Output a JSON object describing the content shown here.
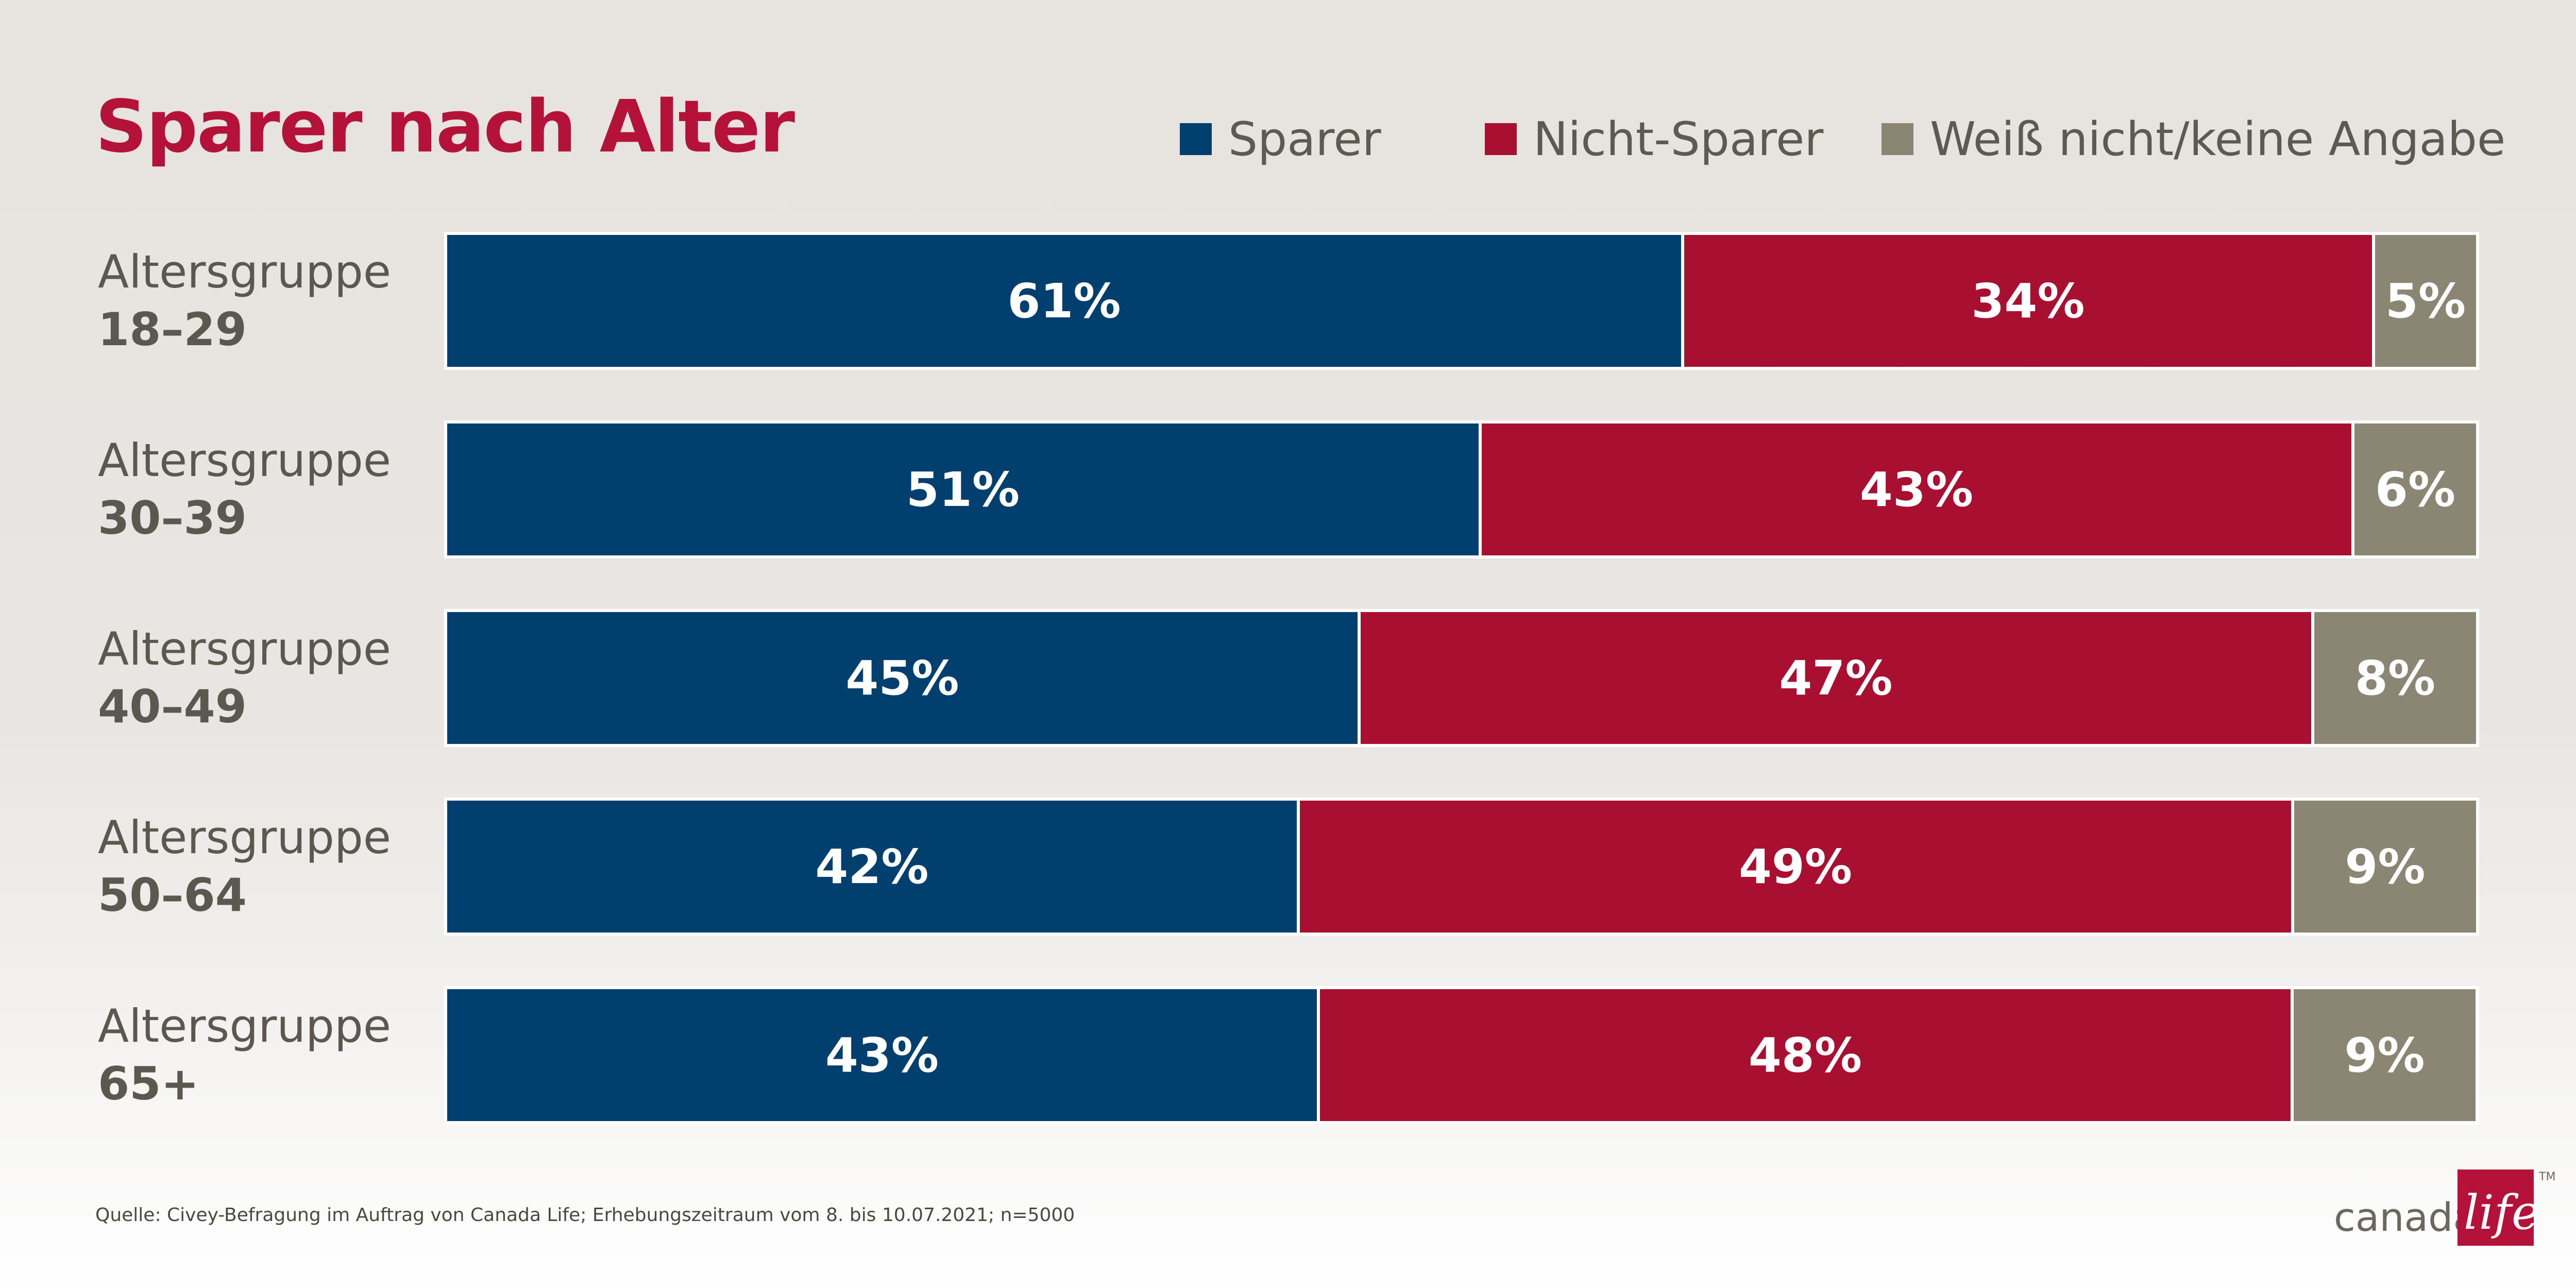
{
  "colors": {
    "sparer": "#003f6e",
    "nicht_sparer": "#a80f30",
    "weiss_nicht": "#8b8574",
    "title": "#b5123a",
    "label": "#5b5850"
  },
  "legend": {
    "sparer": "Sparer",
    "nicht_sparer": "Nicht-Sparer",
    "weiss_nicht": "Weiß nicht/keine Angabe"
  },
  "source": "Quelle: Civey-Befragung im Auftrag von Canada Life; Erhebungszeitraum vom 8. bis 10.07.2021; n=5000",
  "logo": {
    "text": "canada",
    "script": "life",
    "tm": "TM"
  },
  "chart_data": {
    "type": "bar",
    "orientation": "horizontal",
    "stacked": true,
    "title": "Sparer nach Alter",
    "legend_position": "top-right",
    "unit": "%",
    "categories": [
      {
        "line1": "Altersgruppe",
        "line2": "18–29"
      },
      {
        "line1": "Altersgruppe",
        "line2": "30–39"
      },
      {
        "line1": "Altersgruppe",
        "line2": "40–49"
      },
      {
        "line1": "Altersgruppe",
        "line2": "50–64"
      },
      {
        "line1": "Altersgruppe",
        "line2": "65+"
      }
    ],
    "series": [
      {
        "name": "Sparer",
        "values": [
          61,
          51,
          45,
          42,
          43
        ],
        "labels": [
          "61%",
          "51%",
          "45%",
          "42%",
          "43%"
        ]
      },
      {
        "name": "Nicht-Sparer",
        "values": [
          34,
          43,
          47,
          49,
          48
        ],
        "labels": [
          "34%",
          "43%",
          "47%",
          "49%",
          "48%"
        ]
      },
      {
        "name": "Weiß nicht/keine Angabe",
        "values": [
          5,
          6,
          8,
          9,
          9
        ],
        "labels": [
          "5%",
          "6%",
          "8%",
          "9%",
          "9%"
        ]
      }
    ]
  }
}
